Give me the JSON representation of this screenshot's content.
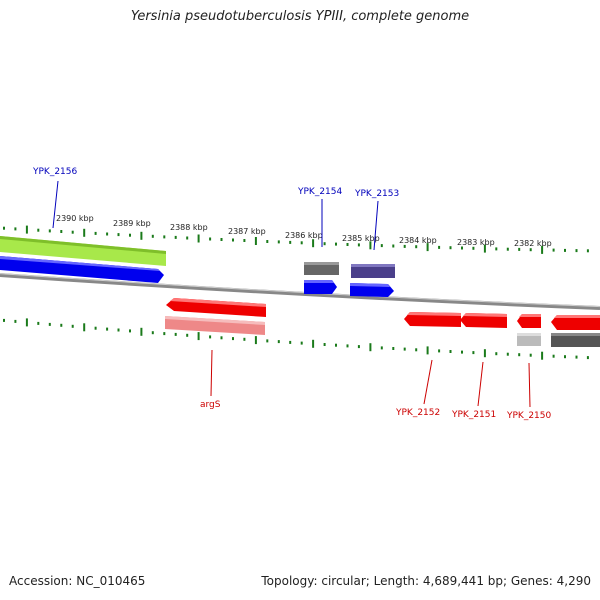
{
  "title": "Yersinia pseudotuberculosis YPIII, complete genome",
  "footer": {
    "accession": "Accession: NC_010465",
    "summary": "Topology: circular; Length: 4,689,441 bp; Genes: 4,290"
  },
  "colors": {
    "tick": "#1a7a1a",
    "backbone": "#8a8a8a",
    "forward_gene": "#0000ee",
    "reverse_gene": "#ee0000",
    "forward_label": "#0000bb",
    "reverse_label": "#cc0000",
    "highlight": "#aaee44",
    "dark_feature": "#555555",
    "slate_feature": "#4a3f8a",
    "pink_feature": "#ee8888",
    "light_gray_feature": "#bbbbbb"
  },
  "axis": {
    "ticks": [
      "2390 kbp",
      "2389 kbp",
      "2388 kbp",
      "2387 kbp",
      "2386 kbp",
      "2385 kbp",
      "2384 kbp",
      "2383 kbp",
      "2382 kbp"
    ]
  },
  "gene_labels": {
    "forward": [
      "YPK_2156",
      "YPK_2154",
      "YPK_2153"
    ],
    "reverse": [
      "argS",
      "YPK_2152",
      "YPK_2151",
      "YPK_2150"
    ]
  }
}
